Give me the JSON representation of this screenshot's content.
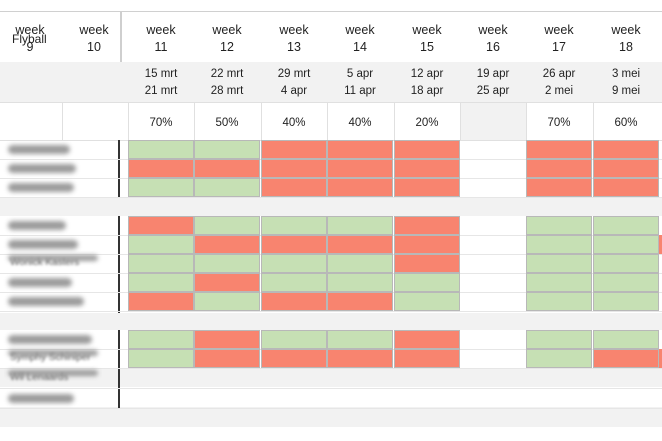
{
  "title": "Flyball",
  "header": {
    "left_weeks": [
      {
        "label": "week",
        "num": "9"
      },
      {
        "label": "week",
        "num": "10"
      }
    ],
    "weeks": [
      {
        "label": "week",
        "num": "11",
        "date1": "15 mrt",
        "date2": "21 mrt",
        "pct": "70%"
      },
      {
        "label": "week",
        "num": "12",
        "date1": "22 mrt",
        "date2": "28 mrt",
        "pct": "50%"
      },
      {
        "label": "week",
        "num": "13",
        "date1": "29 mrt",
        "date2": "4 apr",
        "pct": "40%"
      },
      {
        "label": "week",
        "num": "14",
        "date1": "5 apr",
        "date2": "11 apr",
        "pct": "40%"
      },
      {
        "label": "week",
        "num": "15",
        "date1": "12 apr",
        "date2": "18 apr",
        "pct": "20%"
      },
      {
        "label": "week",
        "num": "16",
        "date1": "19 apr",
        "date2": "25 apr",
        "pct": ""
      },
      {
        "label": "week",
        "num": "17",
        "date1": "26 apr",
        "date2": "2 mei",
        "pct": "70%"
      },
      {
        "label": "week",
        "num": "18",
        "date1": "3 mei",
        "date2": "9 mei",
        "pct": "60%"
      }
    ]
  },
  "colors": {
    "available": "#c6e0b4",
    "unavailable": "#f8846f",
    "header_band": "#f2f2f2"
  },
  "visible_name_fragments": [
    "Wonick Kasters",
    "Symphy Schiniper",
    "Wil Lenaards"
  ]
}
